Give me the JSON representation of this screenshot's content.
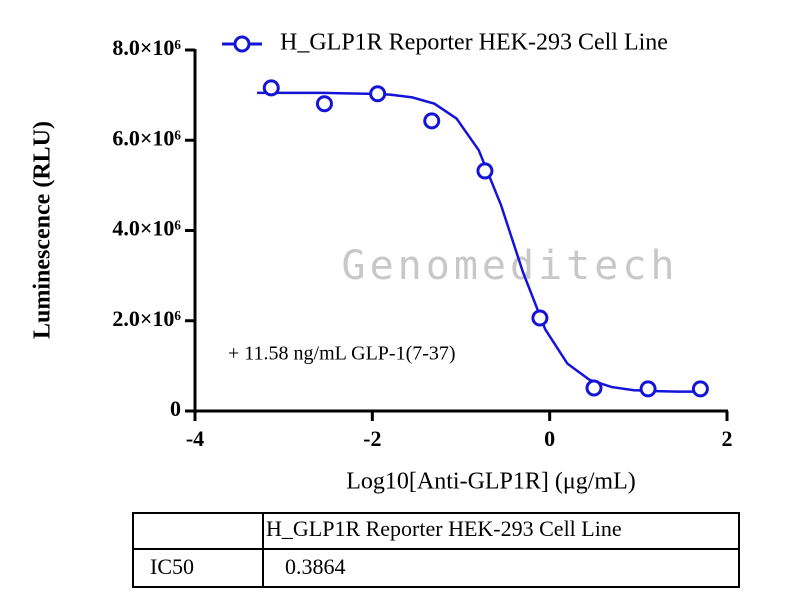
{
  "chart_data": {
    "type": "scatter",
    "y_label": "Luminescence (RLU)",
    "x_label": "Log10[Anti-GLP1R] (μg/mL)",
    "annotation": "+ 11.58 ng/mL GLP-1(7-37)",
    "watermark": "Genomeditech",
    "xlim": [
      -4,
      2
    ],
    "xticks": [
      -4,
      -2,
      0,
      2
    ],
    "ylim": [
      0,
      8000000
    ],
    "yticks": [
      0,
      {
        "value": 2000000,
        "label": "2.0×10⁶"
      },
      {
        "value": 4000000,
        "label": "4.0×10⁶"
      },
      {
        "value": 6000000,
        "label": "6.0×10⁶"
      },
      {
        "value": 8000000,
        "label": "8.0×10⁶"
      }
    ],
    "series": [
      {
        "name": "H_GLP1R Reporter HEK-293 Cell Line",
        "color": "#1414d8",
        "x": [
          -3.14,
          -2.54,
          -1.94,
          -1.33,
          -0.73,
          -0.11,
          0.5,
          1.11,
          1.7
        ],
        "values": [
          7160000,
          6810000,
          7030000,
          6430000,
          5320000,
          2060000,
          510000,
          490000,
          490000
        ]
      }
    ],
    "fit": {
      "x": [
        -3.3,
        -3.05,
        -2.8,
        -2.55,
        -2.3,
        -2.05,
        -1.8,
        -1.55,
        -1.3,
        -1.05,
        -0.8,
        -0.55,
        -0.3,
        -0.05,
        0.2,
        0.45,
        0.7,
        0.95,
        1.2,
        1.45,
        1.7
      ],
      "values": [
        7050000,
        7050000,
        7050000,
        7050000,
        7040000,
        7030000,
        7010000,
        6950000,
        6810000,
        6480000,
        5780000,
        4570000,
        3070000,
        1810000,
        1050000,
        690000,
        530000,
        460000,
        440000,
        430000,
        430000
      ]
    }
  },
  "table": {
    "column_header": "H_GLP1R Reporter HEK-293 Cell Line",
    "rows": [
      [
        "IC50",
        0.3864
      ]
    ]
  }
}
